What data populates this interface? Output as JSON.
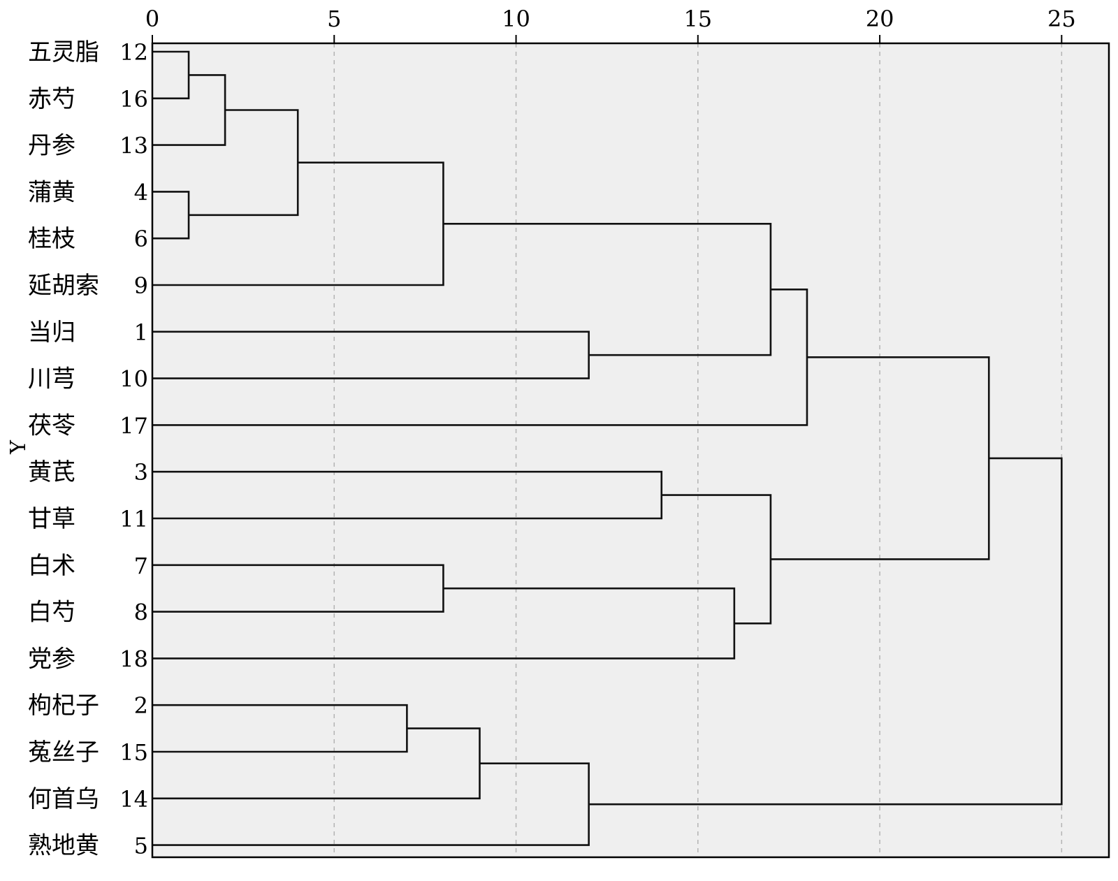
{
  "chart_data": {
    "type": "dendrogram",
    "orientation": "horizontal",
    "xlabel": "",
    "ylabel": "Y",
    "xlim": [
      0,
      26.3
    ],
    "xticks": [
      0,
      5,
      10,
      15,
      20,
      25
    ],
    "xtick_labels": [
      "0",
      "5",
      "10",
      "15",
      "20",
      "25"
    ],
    "grid": "vertical-dashed",
    "leaves": [
      {
        "name": "五灵脂",
        "id": "12"
      },
      {
        "name": "赤芍",
        "id": "16"
      },
      {
        "name": "丹参",
        "id": "13"
      },
      {
        "name": "蒲黄",
        "id": "4"
      },
      {
        "name": "桂枝",
        "id": "6"
      },
      {
        "name": "延胡索",
        "id": "9"
      },
      {
        "name": "当归",
        "id": "1"
      },
      {
        "name": "川芎",
        "id": "10"
      },
      {
        "name": "茯苓",
        "id": "17"
      },
      {
        "name": "黄芪",
        "id": "3"
      },
      {
        "name": "甘草",
        "id": "11"
      },
      {
        "name": "白术",
        "id": "7"
      },
      {
        "name": "白芍",
        "id": "8"
      },
      {
        "name": "党参",
        "id": "18"
      },
      {
        "name": "枸杞子",
        "id": "2"
      },
      {
        "name": "菟丝子",
        "id": "15"
      },
      {
        "name": "何首乌",
        "id": "14"
      },
      {
        "name": "熟地黄",
        "id": "5"
      }
    ],
    "merges": [
      {
        "a": "L0",
        "b": "L1",
        "height": 1
      },
      {
        "a": "L3",
        "b": "L4",
        "height": 1
      },
      {
        "a": "M0",
        "b": "L2",
        "height": 2
      },
      {
        "a": "M2",
        "b": "M1",
        "height": 4
      },
      {
        "a": "M3",
        "b": "L5",
        "height": 8
      },
      {
        "a": "L11",
        "b": "L12",
        "height": 8
      },
      {
        "a": "L14",
        "b": "L15",
        "height": 7
      },
      {
        "a": "M6",
        "b": "L16",
        "height": 9
      },
      {
        "a": "M7",
        "b": "L17",
        "height": 12
      },
      {
        "a": "L6",
        "b": "L7",
        "height": 12
      },
      {
        "a": "L9",
        "b": "L10",
        "height": 14
      },
      {
        "a": "M5",
        "b": "L13",
        "height": 16
      },
      {
        "a": "M4",
        "b": "M9",
        "height": 17
      },
      {
        "a": "M10",
        "b": "M11",
        "height": 17
      },
      {
        "a": "M12",
        "b": "L8",
        "height": 18
      },
      {
        "a": "M14",
        "b": "M13",
        "height": 23
      },
      {
        "a": "M15",
        "b": "M8",
        "height": 25
      }
    ]
  }
}
